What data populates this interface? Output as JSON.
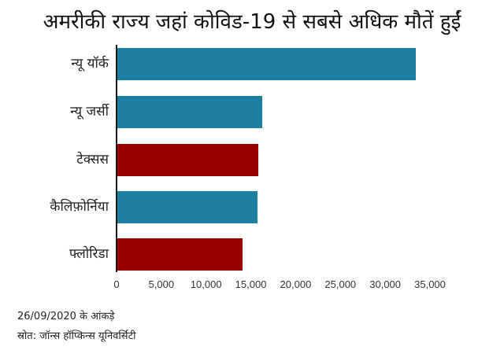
{
  "chart_data": {
    "type": "bar",
    "orientation": "horizontal",
    "title": "अमरीकी राज्य जहां कोविड-19 से सबसे अधिक मौतें हुईं",
    "xlabel": "",
    "ylabel": "",
    "categories": [
      "न्यू यॉर्क",
      "न्यू जर्सी",
      "टेक्सस",
      "कैलिफ़ोर्निया",
      "फ्लोरिडा"
    ],
    "values": [
      33300,
      16200,
      15700,
      15650,
      14000
    ],
    "bar_colors": [
      "#1e7fa2",
      "#1e7fa2",
      "#990000",
      "#1e7fa2",
      "#990000"
    ],
    "xlim": [
      0,
      35000
    ],
    "xticks": [
      0,
      5000,
      10000,
      15000,
      20000,
      25000,
      30000,
      35000
    ],
    "xtick_labels": [
      "0",
      "5,000",
      "10,000",
      "15,000",
      "20,000",
      "25,000",
      "30,000",
      "35,000"
    ],
    "grid": false,
    "legend": null
  },
  "title": "अमरीकी राज्य जहां कोविड-19 से सबसे अधिक मौतें हुईं",
  "colors": {
    "teal": "#1e7fa2",
    "red": "#990000"
  },
  "footnotes": {
    "date": "26/09/2020 के आंकड़े",
    "source": "स्रोत: जॉन्स हॉप्किन्स यूनिवर्सिटी"
  }
}
